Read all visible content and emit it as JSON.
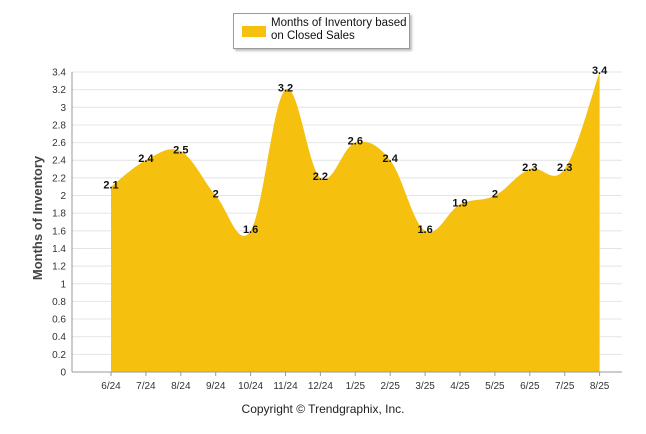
{
  "legend": {
    "label": "Months of Inventory based on Closed Sales"
  },
  "copyright": "Copyright © Trendgraphix, Inc.",
  "colors": {
    "area": "#f6c10e",
    "grid": "#e4e4e4",
    "axis": "#999999"
  },
  "chart_data": {
    "type": "area",
    "title": "",
    "xlabel": "",
    "ylabel": "Months of Inventory",
    "categories": [
      "6/24",
      "7/24",
      "8/24",
      "9/24",
      "10/24",
      "11/24",
      "12/24",
      "1/25",
      "2/25",
      "3/25",
      "4/25",
      "5/25",
      "6/25",
      "7/25",
      "8/25"
    ],
    "series": [
      {
        "name": "Months of Inventory based on Closed Sales",
        "values": [
          2.1,
          2.4,
          2.5,
          2.0,
          1.6,
          3.2,
          2.2,
          2.6,
          2.4,
          1.6,
          1.9,
          2.0,
          2.3,
          2.3,
          3.4
        ]
      }
    ],
    "data_labels": [
      "2.1",
      "2.4",
      "2.5",
      "2",
      "1.6",
      "3.2",
      "2.2",
      "2.6",
      "2.4",
      "1.6",
      "1.9",
      "2",
      "2.3",
      "2.3",
      "3.4"
    ],
    "y_ticks": [
      "0",
      "0.2",
      "0.4",
      "0.6",
      "0.8",
      "1",
      "1.2",
      "1.4",
      "1.6",
      "1.8",
      "2",
      "2.2",
      "2.4",
      "2.6",
      "2.8",
      "3",
      "3.2",
      "3.4"
    ],
    "ylim": [
      0,
      3.4
    ],
    "grid": true,
    "legend_position": "top-center"
  }
}
